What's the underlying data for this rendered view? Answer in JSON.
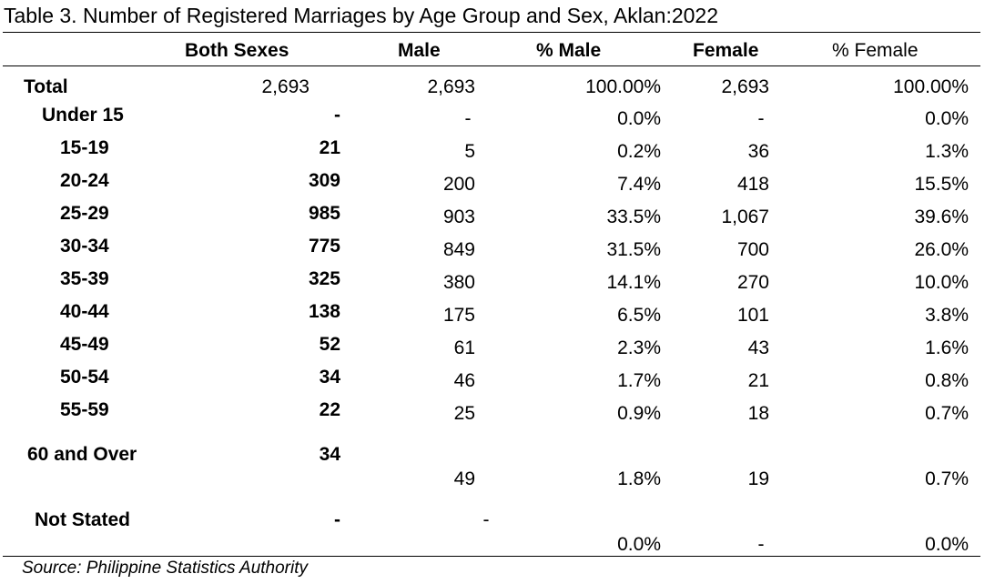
{
  "title": "Table 3. Number of Registered Marriages by Age Group and Sex, Aklan:2022",
  "headers": {
    "both_sexes": "Both Sexes",
    "male": "Male",
    "pct_male": "% Male",
    "female": "Female",
    "pct_female": "% Female"
  },
  "rows": [
    {
      "label": "Total",
      "both": "2,693",
      "male": "2,693",
      "pct_male": "100.00%",
      "female": "2,693",
      "pct_female": "100.00%"
    },
    {
      "label": "Under 15",
      "both": "-",
      "male": "-",
      "pct_male": "0.0%",
      "female": "-",
      "pct_female": "0.0%"
    },
    {
      "label": "15-19",
      "both": "21",
      "male": "5",
      "pct_male": "0.2%",
      "female": "36",
      "pct_female": "1.3%"
    },
    {
      "label": "20-24",
      "both": "309",
      "male": "200",
      "pct_male": "7.4%",
      "female": "418",
      "pct_female": "15.5%"
    },
    {
      "label": "25-29",
      "both": "985",
      "male": "903",
      "pct_male": "33.5%",
      "female": "1,067",
      "pct_female": "39.6%"
    },
    {
      "label": "30-34",
      "both": "775",
      "male": "849",
      "pct_male": "31.5%",
      "female": "700",
      "pct_female": "26.0%"
    },
    {
      "label": "35-39",
      "both": "325",
      "male": "380",
      "pct_male": "14.1%",
      "female": "270",
      "pct_female": "10.0%"
    },
    {
      "label": "40-44",
      "both": "138",
      "male": "175",
      "pct_male": "6.5%",
      "female": "101",
      "pct_female": "3.8%"
    },
    {
      "label": "45-49",
      "both": "52",
      "male": "61",
      "pct_male": "2.3%",
      "female": "43",
      "pct_female": "1.6%"
    },
    {
      "label": "50-54",
      "both": "34",
      "male": "46",
      "pct_male": "1.7%",
      "female": "21",
      "pct_female": "0.8%"
    },
    {
      "label": "55-59",
      "both": "22",
      "male": "25",
      "pct_male": "0.9%",
      "female": "18",
      "pct_female": "0.7%"
    },
    {
      "label": "60 and Over",
      "both": "34",
      "male": "49",
      "pct_male": "1.8%",
      "female": "19",
      "pct_female": "0.7%"
    },
    {
      "label": "Not Stated",
      "both": "-",
      "male": "-",
      "pct_male": "0.0%",
      "female": "-",
      "pct_female": "0.0%"
    }
  ],
  "source": "Source: Philippine Statistics Authority"
}
